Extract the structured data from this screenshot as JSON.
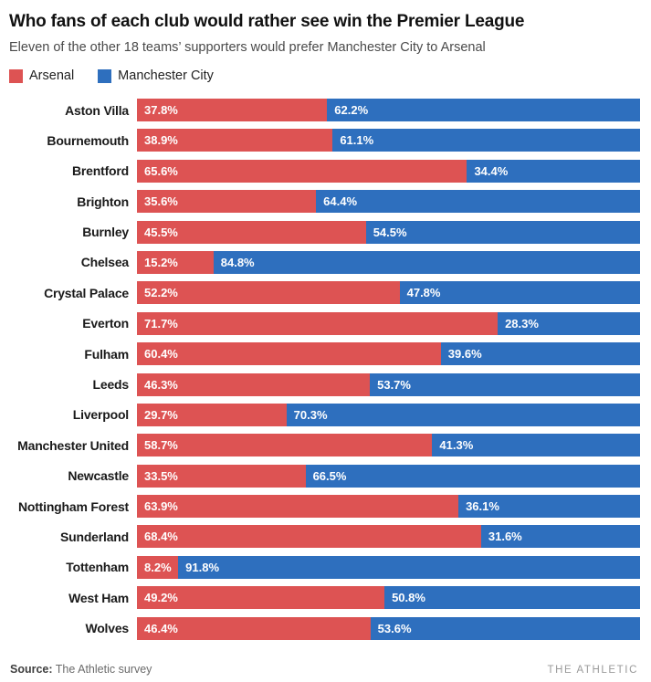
{
  "header": {
    "title": "Who fans of each club would rather see win the Premier League",
    "subtitle": "Eleven of the other 18 teams’ supporters would prefer Manchester City to Arsenal"
  },
  "colors": {
    "arsenal": "#dd5353",
    "man_city": "#2e6fbe"
  },
  "legend": [
    {
      "label": "Arsenal",
      "color_key": "arsenal"
    },
    {
      "label": "Manchester City",
      "color_key": "man_city"
    }
  ],
  "chart_data": {
    "type": "bar",
    "orientation": "horizontal",
    "stacked": true,
    "title": "Who fans of each club would rather see win the Premier League",
    "subtitle": "Eleven of the other 18 teams’ supporters would prefer Manchester City to Arsenal",
    "unit": "%",
    "xlim": [
      0,
      100
    ],
    "legend_position": "top",
    "categories": [
      "Aston Villa",
      "Bournemouth",
      "Brentford",
      "Brighton",
      "Burnley",
      "Chelsea",
      "Crystal Palace",
      "Everton",
      "Fulham",
      "Leeds",
      "Liverpool",
      "Manchester United",
      "Newcastle",
      "Nottingham Forest",
      "Sunderland",
      "Tottenham",
      "West Ham",
      "Wolves"
    ],
    "series": [
      {
        "name": "Arsenal",
        "color_key": "arsenal",
        "values": [
          37.8,
          38.9,
          65.6,
          35.6,
          45.5,
          15.2,
          52.2,
          71.7,
          60.4,
          46.3,
          29.7,
          58.7,
          33.5,
          63.9,
          68.4,
          8.2,
          49.2,
          46.4
        ]
      },
      {
        "name": "Manchester City",
        "color_key": "man_city",
        "values": [
          62.2,
          61.1,
          34.4,
          64.4,
          54.5,
          84.8,
          47.8,
          28.3,
          39.6,
          53.7,
          70.3,
          41.3,
          66.5,
          36.1,
          31.6,
          91.8,
          50.8,
          53.6
        ]
      }
    ]
  },
  "footer": {
    "source_prefix": "Source:",
    "source_text": " The Athletic survey",
    "brand": "THE ATHLETIC"
  }
}
